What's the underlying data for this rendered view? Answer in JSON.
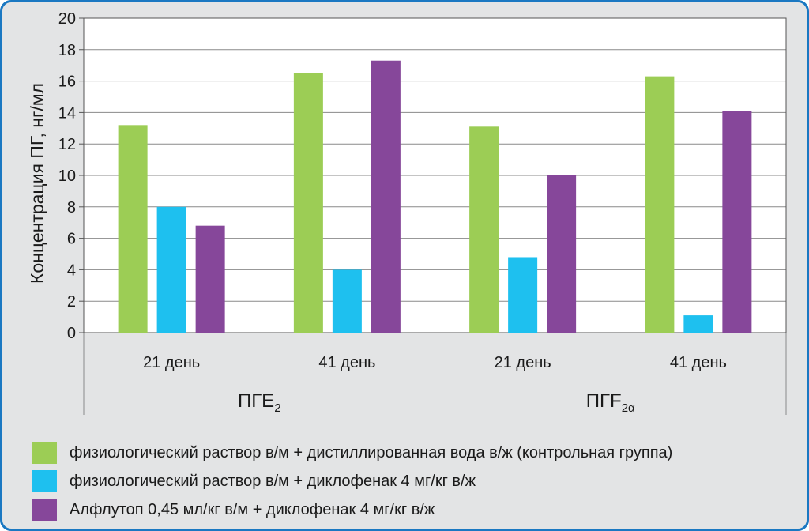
{
  "chart_data": {
    "type": "bar",
    "ylabel": "Концентрация ПГ, нг/мл",
    "ylim": [
      0,
      20
    ],
    "yticks": [
      0,
      2,
      4,
      6,
      8,
      10,
      12,
      14,
      16,
      18,
      20
    ],
    "grid": true,
    "groups": [
      {
        "label": "ПГЕ",
        "sub": "2",
        "categories": [
          "21 день",
          "41 день"
        ]
      },
      {
        "label": "ПГF",
        "sub": "2α",
        "categories": [
          "21 день",
          "41 день"
        ]
      }
    ],
    "categories": [
      "21 день",
      "41 день",
      "21 день",
      "41 день"
    ],
    "series": [
      {
        "name": "физиологический раствор в/м + дистиллированная вода в/ж (контрольная группа)",
        "color": "#9ccd55",
        "values": [
          13.2,
          16.5,
          13.1,
          16.3
        ]
      },
      {
        "name": "физиологический раствор в/м + диклофенак 4 мг/кг в/ж",
        "color": "#1ec0ef",
        "values": [
          8.0,
          4.0,
          4.8,
          1.1
        ]
      },
      {
        "name": "Алфлутоп 0,45 мл/кг в/м + диклофенак 4 мг/кг в/ж",
        "color": "#86479a",
        "values": [
          6.8,
          17.3,
          10.0,
          14.1
        ]
      }
    ],
    "legend_position": "bottom"
  }
}
